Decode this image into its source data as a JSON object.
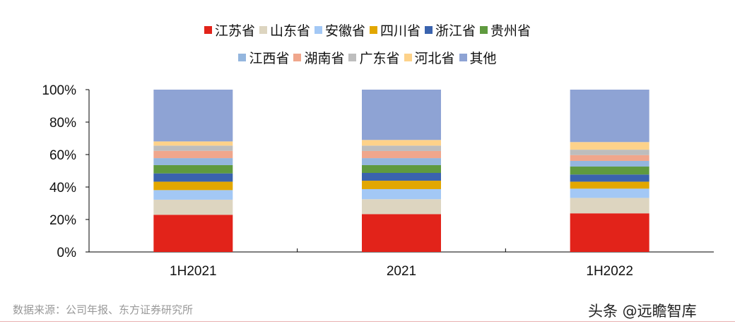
{
  "chart_data": {
    "type": "bar",
    "stacked": true,
    "categories": [
      "1H2021",
      "2021",
      "1H2022"
    ],
    "ylim": [
      0,
      100
    ],
    "yticks": [
      "0%",
      "20%",
      "40%",
      "60%",
      "80%",
      "100%"
    ],
    "legend_position": "top",
    "grid": false,
    "series": [
      {
        "name": "江苏省",
        "color": "#e2231a",
        "values": [
          22.9,
          23.3,
          23.8
        ]
      },
      {
        "name": "山东省",
        "color": "#ddd5c0",
        "values": [
          9.3,
          9.2,
          9.5
        ]
      },
      {
        "name": "安徽省",
        "color": "#a3c8f5",
        "values": [
          5.9,
          6.2,
          5.7
        ]
      },
      {
        "name": "四川省",
        "color": "#e2a700",
        "values": [
          5.2,
          5.2,
          4.3
        ]
      },
      {
        "name": "浙江省",
        "color": "#3a63ae",
        "values": [
          5.1,
          4.8,
          4.4
        ]
      },
      {
        "name": "贵州省",
        "color": "#5f9a3f",
        "values": [
          5.1,
          4.8,
          4.9
        ]
      },
      {
        "name": "江西省",
        "color": "#94b6de",
        "values": [
          4.3,
          4.3,
          3.5
        ]
      },
      {
        "name": "湖南省",
        "color": "#f0a68c",
        "values": [
          4.5,
          4.4,
          3.6
        ]
      },
      {
        "name": "广东省",
        "color": "#bdbdbd",
        "values": [
          3.2,
          3.3,
          3.3
        ]
      },
      {
        "name": "河北省",
        "color": "#fdd28a",
        "values": [
          2.6,
          3.5,
          4.7
        ]
      },
      {
        "name": "其他",
        "color": "#8ea3d4",
        "values": [
          31.9,
          31.0,
          32.3
        ]
      }
    ]
  },
  "source": "数据来源：公司年报、东方证券研究所",
  "watermark": "头条 @远瞻智库"
}
